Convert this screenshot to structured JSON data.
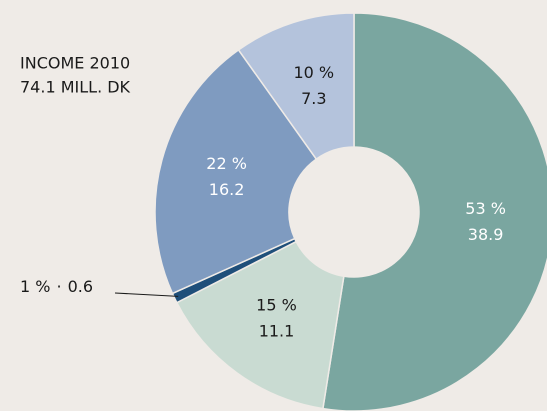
{
  "chart_data": {
    "type": "donut",
    "title": [
      "INCOME 2010",
      "74.1 MILL. DK"
    ],
    "categories": [
      null,
      null,
      null,
      null,
      null
    ],
    "values": [
      38.9,
      11.1,
      0.6,
      16.2,
      7.3
    ],
    "percent_labels": [
      "53 %",
      "15 %",
      "1 %",
      "22 %",
      "10 %"
    ],
    "label_separator": "·",
    "colors": [
      "#7aa6a0",
      "#c9dbd2",
      "#1f4f7a",
      "#7f9bc0",
      "#b4c3dc"
    ],
    "label_colors": [
      "#ffffff",
      "#1a1a1a",
      "#1a1a1a",
      "#ffffff",
      "#1a1a1a"
    ],
    "start_angle": 0,
    "direction": "clockwise"
  }
}
